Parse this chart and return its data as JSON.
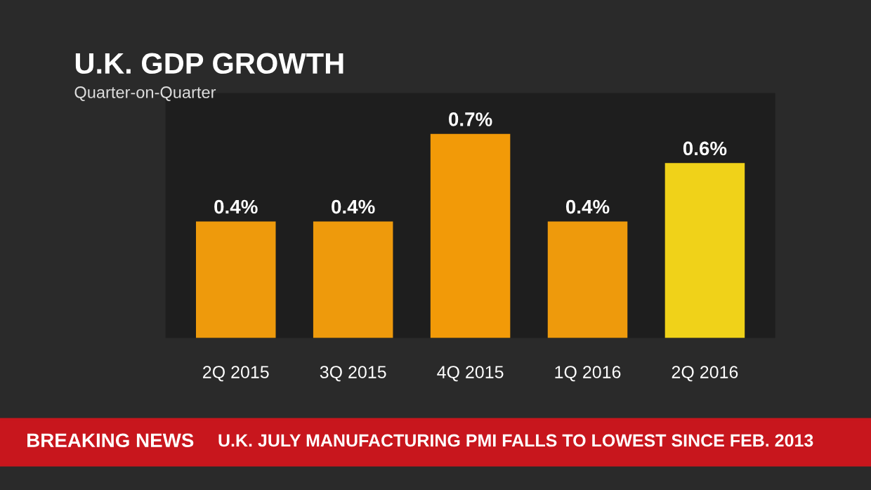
{
  "chart_data": {
    "type": "bar",
    "title": "U.K. GDP GROWTH",
    "subtitle": "Quarter-on-Quarter",
    "categories": [
      "2Q 2015",
      "3Q 2015",
      "4Q 2015",
      "1Q 2016",
      "2Q 2016"
    ],
    "values": [
      0.4,
      0.4,
      0.7,
      0.4,
      0.6
    ],
    "colors": [
      "#ee9a0c",
      "#ee9a0c",
      "#f29a08",
      "#ee9a0c",
      "#f0d219"
    ],
    "value_labels": [
      "0.4%",
      "0.4%",
      "0.7%",
      "0.4%",
      "0.6%"
    ],
    "annotations": [
      "BREAKING NEWS",
      "U.K. JULY MANUFACTURING PMI FALLS TO LOWEST SINCE FEB. 2013"
    ]
  }
}
